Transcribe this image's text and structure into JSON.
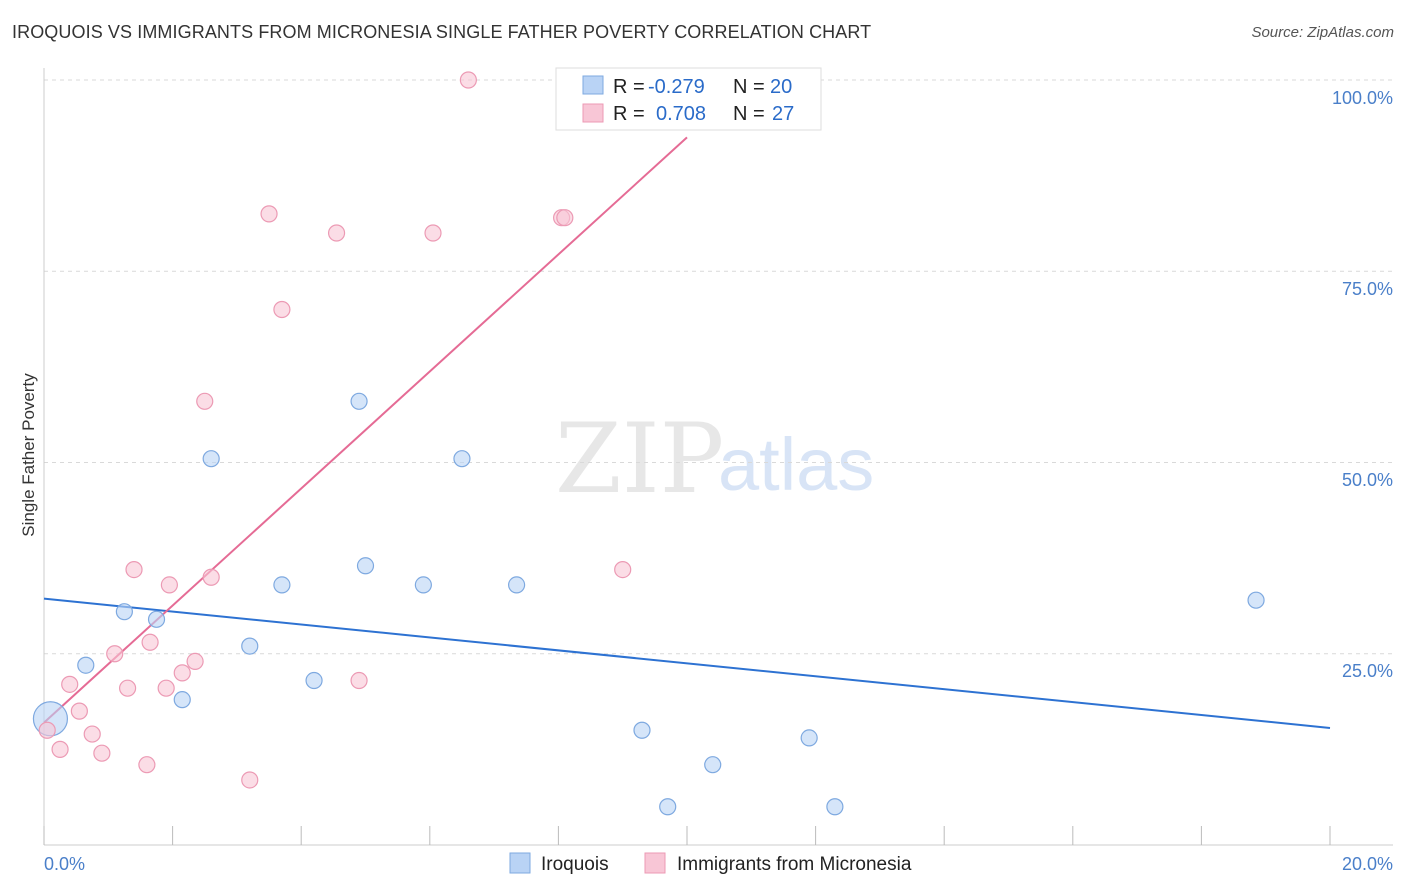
{
  "title": "IROQUOIS VS IMMIGRANTS FROM MICRONESIA SINGLE FATHER POVERTY CORRELATION CHART",
  "source": "Source: ZipAtlas.com",
  "watermark": {
    "zip": "ZIP",
    "atlas": "atlas"
  },
  "colors": {
    "iroquois_fill": "#b9d3f5",
    "iroquois_stroke": "#7ea9e0",
    "iroquois_line": "#2d72d2",
    "micronesia_fill": "#f8c6d6",
    "micronesia_stroke": "#ec9ab4",
    "micronesia_line": "#e56b95",
    "tick_text": "#4a7fc9",
    "grid": "#d9d9d9"
  },
  "legend": {
    "rows": [
      {
        "r_label": "R =",
        "r_value": "-0.279",
        "n_label": "N =",
        "n_value": "20"
      },
      {
        "r_label": "R =",
        "r_value": "0.708",
        "n_label": "N =",
        "n_value": "27"
      }
    ]
  },
  "chart_data": {
    "type": "scatter",
    "xlabel": "",
    "ylabel": "Single Father Poverty",
    "xlim": [
      0,
      20
    ],
    "ylim": [
      0,
      100
    ],
    "x_tick_labels": [
      "0.0%",
      "20.0%"
    ],
    "y_tick_labels": [
      "25.0%",
      "50.0%",
      "75.0%",
      "100.0%"
    ],
    "y_ticks": [
      25,
      50,
      75,
      100
    ],
    "grid": true,
    "legend_position": "bottom",
    "series": [
      {
        "name": "Iroquois",
        "points": [
          {
            "x": 0.1,
            "y": 16.5,
            "big": true
          },
          {
            "x": 0.65,
            "y": 23.5
          },
          {
            "x": 1.25,
            "y": 30.5
          },
          {
            "x": 1.75,
            "y": 29.5
          },
          {
            "x": 2.15,
            "y": 19.0
          },
          {
            "x": 2.6,
            "y": 50.5
          },
          {
            "x": 3.2,
            "y": 26.0
          },
          {
            "x": 3.7,
            "y": 34.0
          },
          {
            "x": 4.2,
            "y": 21.5
          },
          {
            "x": 4.9,
            "y": 58.0
          },
          {
            "x": 5.0,
            "y": 36.5
          },
          {
            "x": 5.9,
            "y": 34.0
          },
          {
            "x": 6.5,
            "y": 50.5
          },
          {
            "x": 7.35,
            "y": 34.0
          },
          {
            "x": 9.3,
            "y": 15.0
          },
          {
            "x": 10.4,
            "y": 10.5
          },
          {
            "x": 9.7,
            "y": 5.0
          },
          {
            "x": 11.9,
            "y": 14.0
          },
          {
            "x": 12.3,
            "y": 5.0
          },
          {
            "x": 18.85,
            "y": 32.0
          }
        ],
        "trend": {
          "x": [
            0,
            20
          ],
          "y": [
            32.2,
            15.3
          ]
        }
      },
      {
        "name": "Immigrants from Micronesia",
        "points": [
          {
            "x": 0.05,
            "y": 15.0
          },
          {
            "x": 0.25,
            "y": 12.5
          },
          {
            "x": 0.4,
            "y": 21.0
          },
          {
            "x": 0.55,
            "y": 17.5
          },
          {
            "x": 0.75,
            "y": 14.5
          },
          {
            "x": 0.9,
            "y": 12.0
          },
          {
            "x": 1.1,
            "y": 25.0
          },
          {
            "x": 1.3,
            "y": 20.5
          },
          {
            "x": 1.4,
            "y": 36.0
          },
          {
            "x": 1.6,
            "y": 10.5
          },
          {
            "x": 1.65,
            "y": 26.5
          },
          {
            "x": 1.9,
            "y": 20.5
          },
          {
            "x": 1.95,
            "y": 34.0
          },
          {
            "x": 2.15,
            "y": 22.5
          },
          {
            "x": 2.35,
            "y": 24.0
          },
          {
            "x": 2.6,
            "y": 35.0
          },
          {
            "x": 2.5,
            "y": 58.0
          },
          {
            "x": 3.2,
            "y": 8.5
          },
          {
            "x": 3.5,
            "y": 82.5
          },
          {
            "x": 3.7,
            "y": 70.0
          },
          {
            "x": 4.55,
            "y": 80.0
          },
          {
            "x": 4.9,
            "y": 21.5
          },
          {
            "x": 6.05,
            "y": 80.0
          },
          {
            "x": 6.6,
            "y": 100.0
          },
          {
            "x": 8.05,
            "y": 82.0
          },
          {
            "x": 8.1,
            "y": 82.0
          },
          {
            "x": 9.0,
            "y": 36.0
          }
        ],
        "trend": {
          "x": [
            0,
            10
          ],
          "y": [
            16.0,
            92.5
          ]
        }
      }
    ]
  }
}
